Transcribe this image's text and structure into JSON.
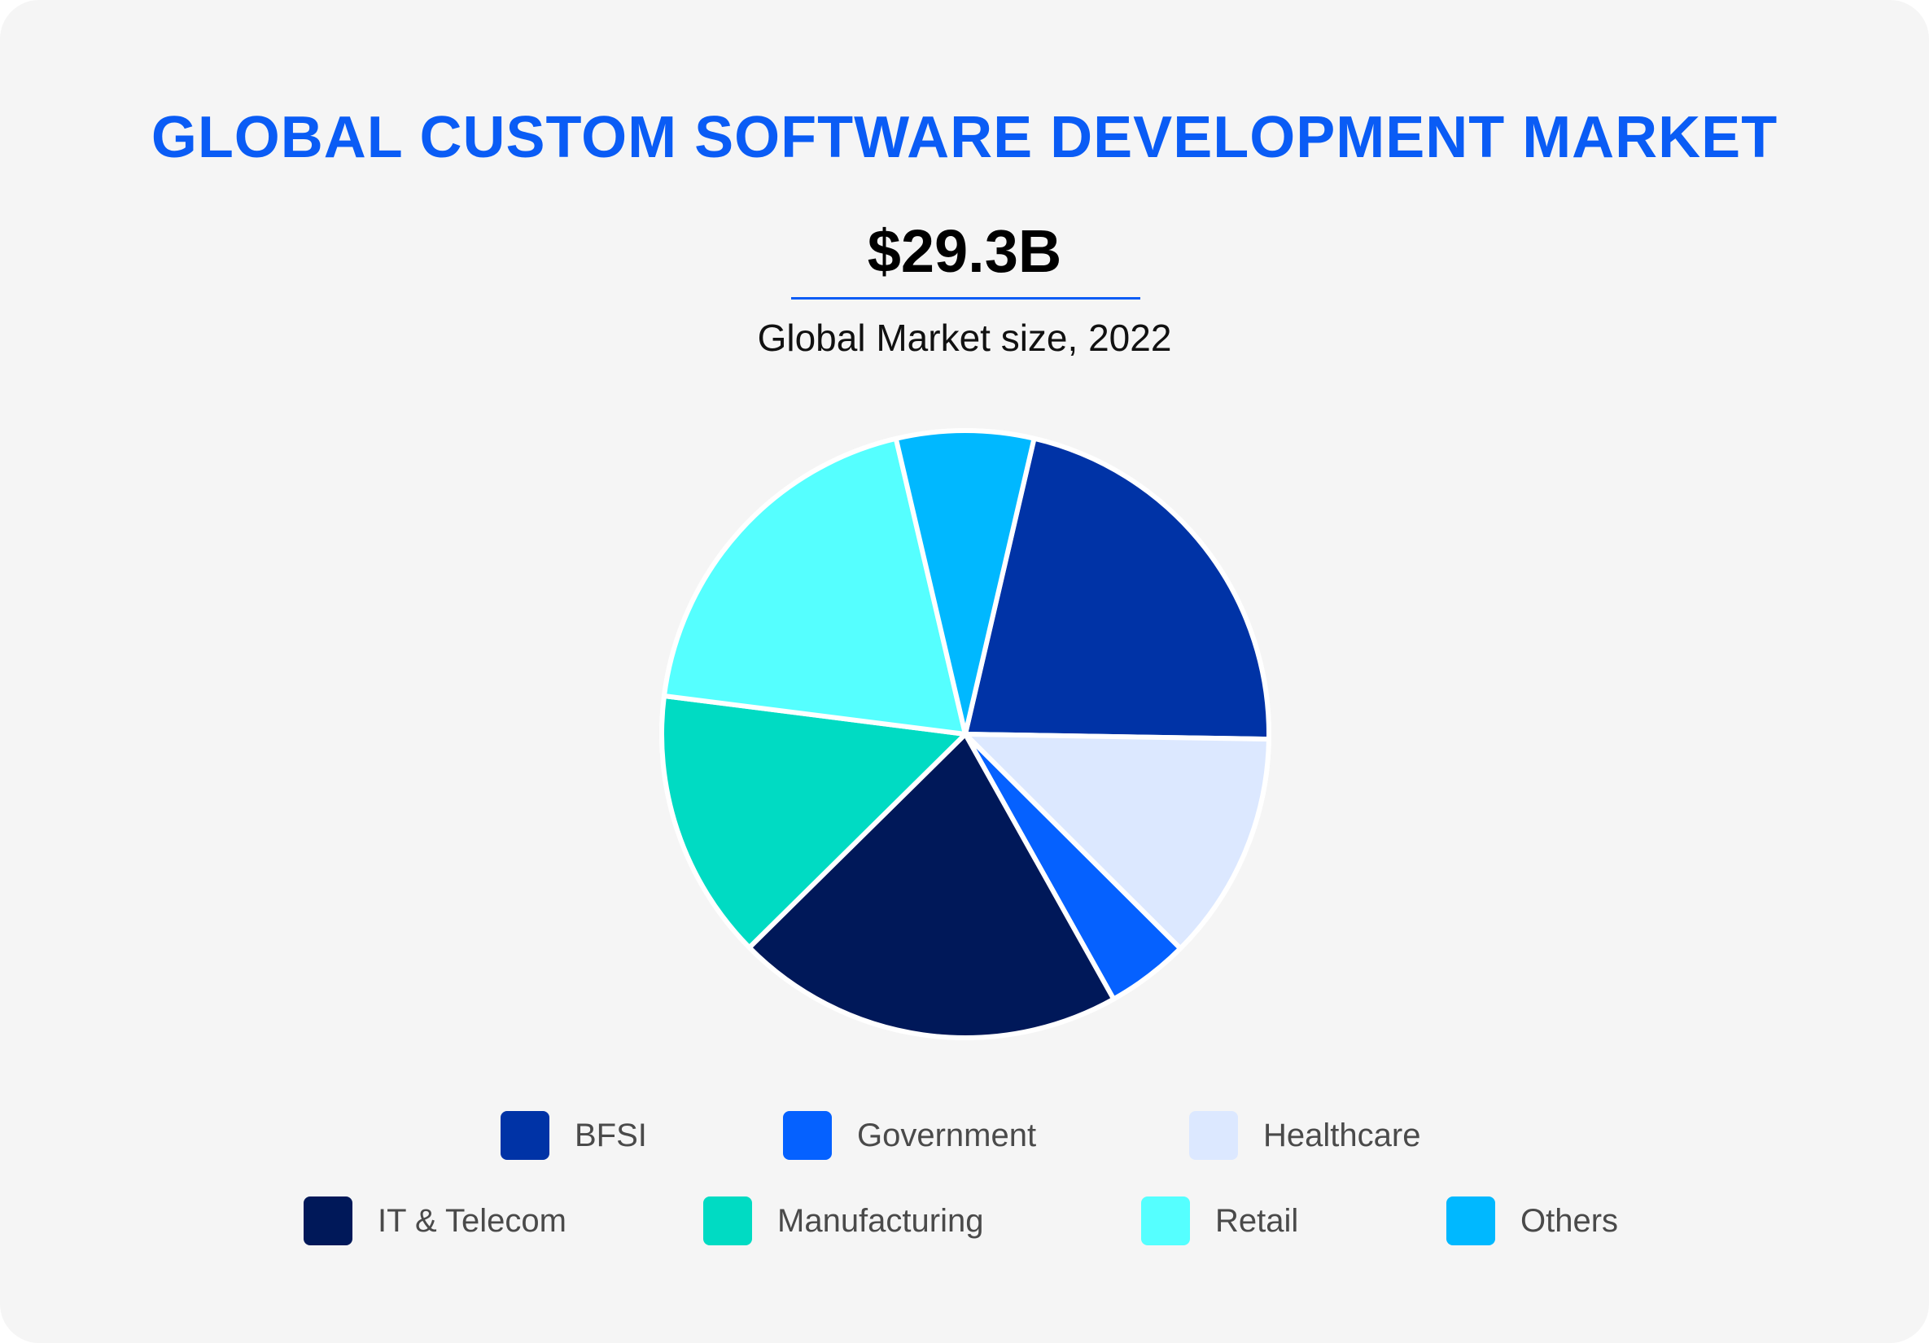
{
  "chart_data": {
    "type": "pie",
    "title": "GLOBAL CUSTOM SOFTWARE DEVELOPMENT MARKET",
    "headline_value": "$29.3B",
    "subtitle": "Global Market size, 2022",
    "legend_position": "bottom",
    "slices": [
      {
        "label": "BFSI",
        "value": 21.6,
        "color": "#0033a6"
      },
      {
        "label": "Healthcare",
        "value": 12.2,
        "color": "#dce8ff"
      },
      {
        "label": "Government",
        "value": 4.4,
        "color": "#0561ff"
      },
      {
        "label": "IT & Telecom",
        "value": 20.7,
        "color": "#001859"
      },
      {
        "label": "Manufacturing",
        "value": 14.4,
        "color": "#00dbc3"
      },
      {
        "label": "Retail",
        "value": 19.3,
        "color": "#55ffff"
      },
      {
        "label": "Others",
        "value": 7.3,
        "color": "#00b8ff"
      }
    ],
    "legend": [
      {
        "label": "BFSI",
        "color": "#0033a6"
      },
      {
        "label": "Government",
        "color": "#0561ff"
      },
      {
        "label": "Healthcare",
        "color": "#dce8ff"
      },
      {
        "label": "IT & Telecom",
        "color": "#001859"
      },
      {
        "label": "Manufacturing",
        "color": "#00dbc3"
      },
      {
        "label": "Retail",
        "color": "#55ffff"
      },
      {
        "label": "Others",
        "color": "#00b8ff"
      }
    ]
  }
}
